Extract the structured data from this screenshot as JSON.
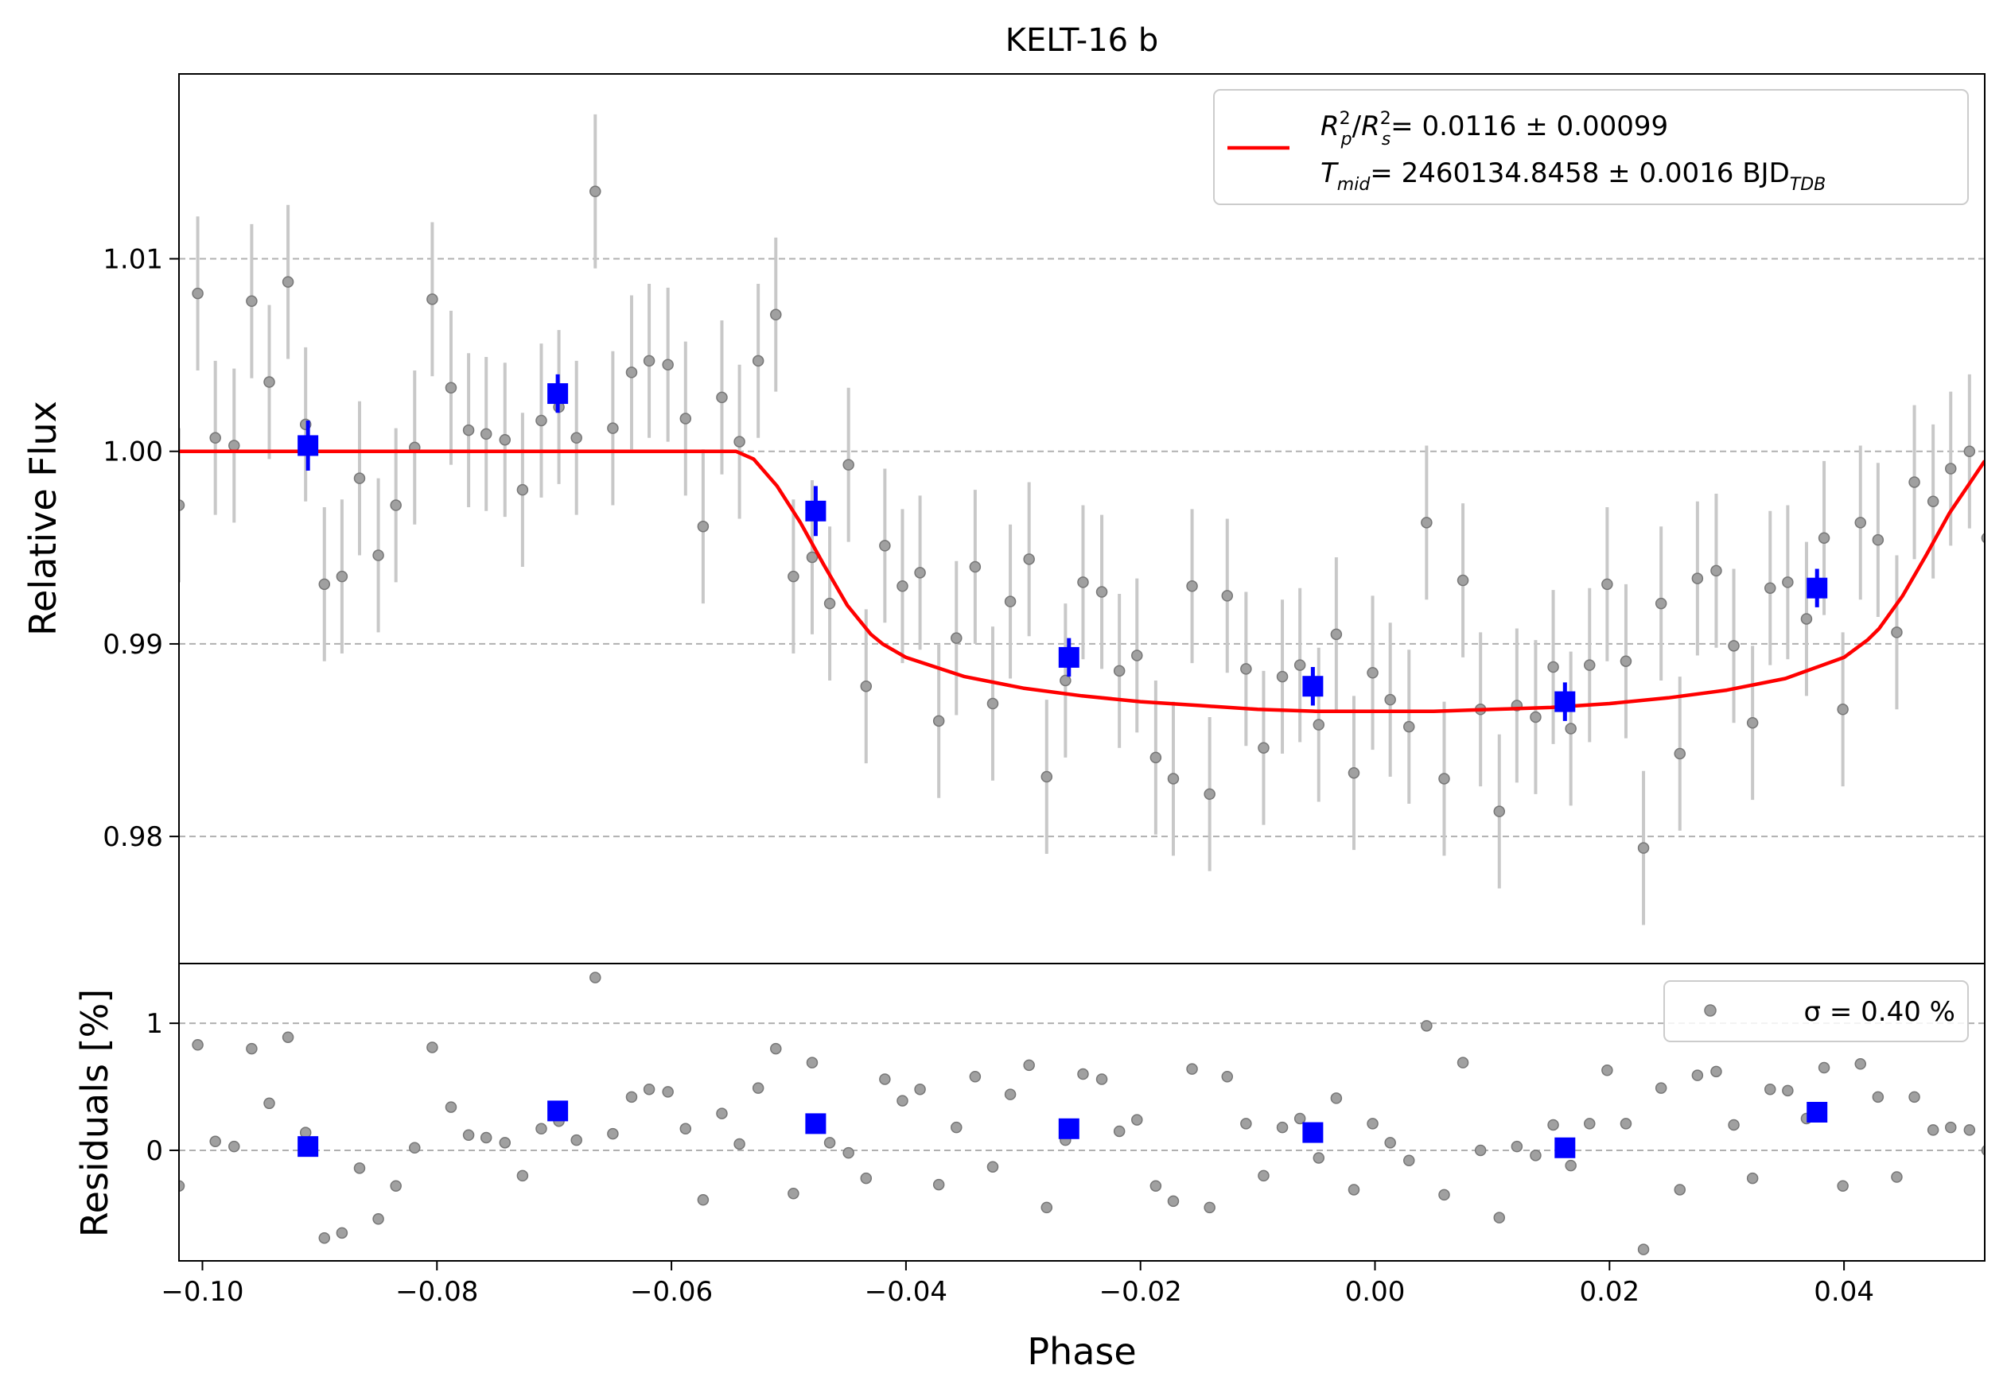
{
  "title": "KELT-16 b",
  "chart_data": [
    {
      "panel": "main",
      "type": "scatter",
      "xlabel": "",
      "ylabel": "Relative Flux",
      "xlim": [
        -0.102,
        0.052
      ],
      "ylim": [
        0.9734,
        1.0196
      ],
      "yticks": [
        0.98,
        0.99,
        1.0,
        1.01
      ],
      "ytick_labels": [
        "0.98",
        "0.99",
        "1.00",
        "1.01"
      ],
      "grid": "horizontal dashed",
      "legend": {
        "placement": "top-right",
        "line1": {
          "lhs": "R²p/R²s",
          "value": "= 0.0116 ± 0.00099"
        },
        "line2": {
          "lhs": "Tmid",
          "value": "= 2460134.8458 ± 0.0016 BJD",
          "sub": "TDB"
        }
      },
      "raw_points": {
        "err": 0.004,
        "x": [
          -0.102,
          -0.1004,
          -0.0989,
          -0.0973,
          -0.0958,
          -0.0943,
          -0.0927,
          -0.0912,
          -0.0896,
          -0.0881,
          -0.0866,
          -0.085,
          -0.0835,
          -0.0819,
          -0.0804,
          -0.0788,
          -0.0773,
          -0.0758,
          -0.0742,
          -0.0727,
          -0.0711,
          -0.0696,
          -0.0681,
          -0.0665,
          -0.065,
          -0.0634,
          -0.0619,
          -0.0603,
          -0.0588,
          -0.0573,
          -0.0557,
          -0.0542,
          -0.0526,
          -0.0511,
          -0.0496,
          -0.048,
          -0.0465,
          -0.0449,
          -0.0434,
          -0.0418,
          -0.0403,
          -0.0388,
          -0.0372,
          -0.0357,
          -0.0341,
          -0.0326,
          -0.0311,
          -0.0295,
          -0.028,
          -0.0264,
          -0.0249,
          -0.0233,
          -0.0218,
          -0.0203,
          -0.0187,
          -0.0172,
          -0.0156,
          -0.0141,
          -0.0126,
          -0.011,
          -0.0095,
          -0.0079,
          -0.0064,
          -0.0048,
          -0.0033,
          -0.0018,
          -0.0002,
          0.0013,
          0.0029,
          0.0044,
          0.0059,
          0.0075,
          0.009,
          0.0106,
          0.0121,
          0.0137,
          0.0152,
          0.0167,
          0.0183,
          0.0198,
          0.0214,
          0.0229,
          0.0244,
          0.026,
          0.0275,
          0.0291,
          0.0306,
          0.0322,
          0.0337,
          0.0352,
          0.0368,
          0.0383,
          0.0399,
          0.0414,
          0.0429,
          0.0445,
          0.046,
          0.0476,
          0.0491,
          0.0507,
          0.0522
        ],
        "y": [
          0.9972,
          1.0082,
          1.0007,
          1.0003,
          1.0078,
          1.0036,
          1.0088,
          1.0014,
          0.9931,
          0.9935,
          0.9986,
          0.9946,
          0.9972,
          1.0002,
          1.0079,
          1.0033,
          1.0011,
          1.0009,
          1.0006,
          0.998,
          1.0016,
          1.0023,
          1.0007,
          1.0135,
          1.0012,
          1.0041,
          1.0047,
          1.0045,
          1.0017,
          0.9961,
          1.0028,
          1.0005,
          1.0047,
          1.0071,
          0.9935,
          0.9945,
          0.9921,
          0.9993,
          0.9878,
          0.9951,
          0.993,
          0.9937,
          0.986,
          0.9903,
          0.994,
          0.9869,
          0.9922,
          0.9944,
          0.9831,
          0.9881,
          0.9932,
          0.9927,
          0.9886,
          0.9894,
          0.9841,
          0.983,
          0.993,
          0.9822,
          0.9925,
          0.9887,
          0.9846,
          0.9883,
          0.9889,
          0.9858,
          0.9905,
          0.9833,
          0.9885,
          0.9871,
          0.9857,
          0.9963,
          0.983,
          0.9933,
          0.9866,
          0.9813,
          0.9868,
          0.9862,
          0.9888,
          0.9856,
          0.9889,
          0.9931,
          0.9891,
          0.9794,
          0.9921,
          0.9843,
          0.9934,
          0.9938,
          0.9899,
          0.9859,
          0.9929,
          0.9932,
          0.9913,
          0.9955,
          0.9866,
          0.9963,
          0.9954,
          0.9906,
          0.9984,
          0.9974,
          0.9991,
          1.0,
          0.9955
        ]
      },
      "binned_points": {
        "x": [
          -0.091,
          -0.0697,
          -0.0477,
          -0.0261,
          -0.0053,
          0.0162,
          0.0377
        ],
        "y": [
          1.0003,
          1.003,
          0.9969,
          0.9893,
          0.9878,
          0.987,
          0.9929
        ],
        "err": [
          0.0013,
          0.001,
          0.0013,
          0.001,
          0.001,
          0.001,
          0.001
        ]
      },
      "model": {
        "name": "transit model",
        "color": "#ff0000",
        "x": [
          -0.102,
          -0.0545,
          -0.053,
          -0.051,
          -0.049,
          -0.047,
          -0.045,
          -0.043,
          -0.042,
          -0.04,
          -0.035,
          -0.03,
          -0.025,
          -0.02,
          -0.015,
          -0.01,
          -0.005,
          0.0,
          0.005,
          0.01,
          0.015,
          0.02,
          0.025,
          0.03,
          0.035,
          0.04,
          0.042,
          0.043,
          0.045,
          0.047,
          0.049,
          0.051,
          0.052
        ],
        "y": [
          1.0,
          1.0,
          0.9996,
          0.9982,
          0.9963,
          0.9941,
          0.992,
          0.9905,
          0.99,
          0.9893,
          0.9883,
          0.9877,
          0.9873,
          0.987,
          0.9868,
          0.9866,
          0.9865,
          0.9865,
          0.9865,
          0.9866,
          0.9867,
          0.9869,
          0.9872,
          0.9876,
          0.9882,
          0.9893,
          0.9902,
          0.9908,
          0.9925,
          0.9946,
          0.9968,
          0.9986,
          0.9995
        ]
      }
    },
    {
      "panel": "residuals",
      "type": "scatter",
      "xlabel": "Phase",
      "ylabel": "Residuals [%]",
      "xlim": [
        -0.102,
        0.052
      ],
      "ylim": [
        -0.87,
        1.47
      ],
      "yticks": [
        0,
        1
      ],
      "ytick_labels": [
        "0",
        "1"
      ],
      "xticks": [
        -0.1,
        -0.08,
        -0.06,
        -0.04,
        -0.02,
        0.0,
        0.02,
        0.04
      ],
      "xtick_labels": [
        "−0.10",
        "−0.08",
        "−0.06",
        "−0.04",
        "−0.02",
        "0.00",
        "0.02",
        "0.04"
      ],
      "grid": "horizontal dashed",
      "legend": {
        "placement": "top-right",
        "label": "σ = 0.40 %"
      },
      "raw_residuals": [
        -0.28,
        0.83,
        0.07,
        0.03,
        0.8,
        0.37,
        0.89,
        0.14,
        -0.69,
        -0.65,
        -0.14,
        -0.54,
        -0.28,
        0.02,
        0.81,
        0.34,
        0.12,
        0.1,
        0.06,
        -0.2,
        0.17,
        0.23,
        0.08,
        1.36,
        0.13,
        0.42,
        0.48,
        0.46,
        0.17,
        -0.39,
        0.29,
        0.05,
        0.49,
        0.8,
        -0.34,
        0.69,
        0.06,
        -0.02,
        -0.22,
        0.56,
        0.39,
        0.48,
        -0.27,
        0.18,
        0.58,
        -0.13,
        0.44,
        0.67,
        -0.45,
        0.08,
        0.6,
        0.56,
        0.15,
        0.24,
        -0.28,
        -0.4,
        0.64,
        -0.45,
        0.58,
        0.21,
        -0.2,
        0.18,
        0.25,
        -0.06,
        0.41,
        -0.31,
        0.21,
        0.06,
        -0.08,
        0.98,
        -0.35,
        0.69,
        0.0,
        -0.53,
        0.03,
        -0.04,
        0.2,
        -0.12,
        0.21,
        0.63,
        0.21,
        -0.78,
        0.49,
        -0.31,
        0.59,
        0.62,
        0.2,
        -0.22,
        0.48,
        0.47,
        0.25,
        0.65,
        -0.28,
        0.68,
        0.42,
        -0.21,
        0.42,
        0.16,
        0.18,
        0.16,
        0.0
      ],
      "binned_residuals": [
        0.03,
        0.31,
        0.21,
        0.17,
        0.14,
        0.02,
        0.3
      ]
    }
  ]
}
